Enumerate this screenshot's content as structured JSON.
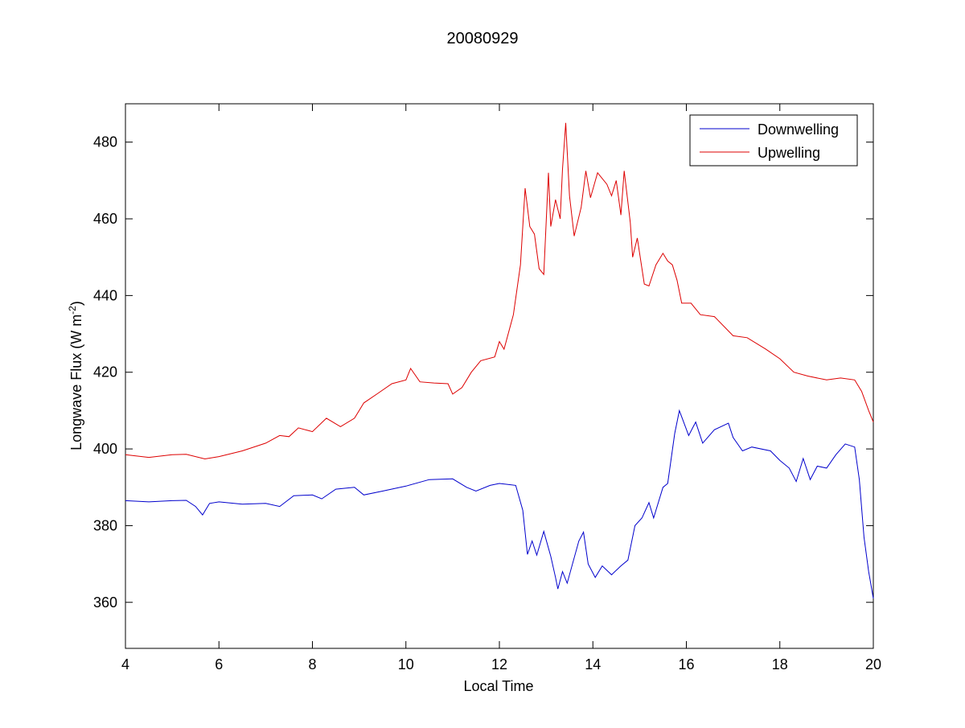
{
  "chart_data": {
    "type": "line",
    "title": "20080929",
    "xlabel": "Local Time",
    "ylabel": "Longwave Flux (W m",
    "ylabel_superscript": "-2",
    "ylabel_suffix": ")",
    "xlim": [
      4,
      20
    ],
    "ylim": [
      348,
      490
    ],
    "xticks": [
      4,
      6,
      8,
      10,
      12,
      14,
      16,
      18,
      20
    ],
    "yticks": [
      360,
      380,
      400,
      420,
      440,
      460,
      480
    ],
    "grid": false,
    "legend_position": "top-right",
    "series": [
      {
        "name": "Downwelling",
        "color": "#0000cc",
        "x": [
          4,
          4.5,
          5,
          5.3,
          5.5,
          5.65,
          5.8,
          6,
          6.5,
          7,
          7.3,
          7.6,
          8,
          8.2,
          8.5,
          8.9,
          9.1,
          9.5,
          10,
          10.5,
          11,
          11.3,
          11.5,
          11.8,
          12,
          12.35,
          12.5,
          12.6,
          12.7,
          12.8,
          12.95,
          13.1,
          13.2,
          13.25,
          13.35,
          13.45,
          13.7,
          13.8,
          13.9,
          14.05,
          14.2,
          14.4,
          14.6,
          14.75,
          14.9,
          15.05,
          15.2,
          15.3,
          15.5,
          15.6,
          15.75,
          15.85,
          16.05,
          16.2,
          16.35,
          16.6,
          16.9,
          17,
          17.2,
          17.4,
          17.8,
          18,
          18.2,
          18.35,
          18.5,
          18.65,
          18.8,
          19,
          19.2,
          19.4,
          19.6,
          19.7,
          19.8,
          19.9,
          20
        ],
        "y": [
          386.5,
          386.2,
          386.5,
          386.6,
          385,
          382.8,
          385.8,
          386.2,
          385.6,
          385.8,
          385,
          387.8,
          388,
          387,
          389.5,
          390,
          388,
          389,
          390.3,
          392,
          392.2,
          390,
          389,
          390.5,
          391,
          390.5,
          384,
          372.5,
          376,
          372.3,
          378.5,
          372,
          366.5,
          363.5,
          368,
          365,
          376,
          378.3,
          370,
          366.5,
          369.5,
          367.2,
          369.5,
          371,
          380,
          382,
          386,
          382,
          390,
          391,
          404,
          410,
          403.5,
          407,
          401.5,
          405,
          406.7,
          403,
          399.5,
          400.5,
          399.5,
          397,
          395,
          391.5,
          397.5,
          392,
          395.5,
          395,
          398.5,
          401.3,
          400.5,
          392,
          377,
          368,
          361
        ]
      },
      {
        "name": "Upwelling",
        "color": "#dd0000",
        "x": [
          4,
          4.5,
          5,
          5.3,
          5.7,
          6,
          6.5,
          7,
          7.3,
          7.5,
          7.7,
          8,
          8.3,
          8.6,
          8.9,
          9.1,
          9.4,
          9.7,
          10,
          10.1,
          10.3,
          10.6,
          10.9,
          11,
          11.2,
          11.4,
          11.6,
          11.9,
          12,
          12.1,
          12.3,
          12.45,
          12.55,
          12.65,
          12.75,
          12.85,
          12.95,
          13.05,
          13.1,
          13.2,
          13.3,
          13.35,
          13.42,
          13.5,
          13.6,
          13.75,
          13.85,
          13.95,
          14.1,
          14.3,
          14.4,
          14.5,
          14.6,
          14.67,
          14.8,
          14.85,
          14.95,
          15.1,
          15.2,
          15.35,
          15.5,
          15.6,
          15.7,
          15.8,
          15.9,
          16.1,
          16.3,
          16.6,
          17,
          17.3,
          17.7,
          18,
          18.3,
          18.6,
          19,
          19.3,
          19.6,
          19.75,
          19.9,
          20
        ],
        "y": [
          398.5,
          397.8,
          398.5,
          398.6,
          397.4,
          398,
          399.5,
          401.5,
          403.5,
          403.2,
          405.5,
          404.5,
          408,
          405.8,
          408,
          412,
          414.5,
          417,
          418,
          421,
          417.5,
          417.2,
          417,
          414.3,
          416,
          420,
          423,
          424,
          428,
          426,
          435,
          448,
          468,
          458,
          456,
          447,
          445.5,
          472,
          458,
          465,
          460,
          473,
          485,
          466,
          455.5,
          463,
          472.5,
          465.5,
          472,
          469,
          466,
          470,
          461,
          472.5,
          459,
          450,
          455,
          443,
          442.5,
          448,
          451,
          449,
          448,
          444,
          438,
          438,
          435,
          434.5,
          429.5,
          429,
          426,
          423.5,
          420,
          419,
          418,
          418.5,
          418,
          415,
          410,
          407
        ]
      }
    ]
  }
}
